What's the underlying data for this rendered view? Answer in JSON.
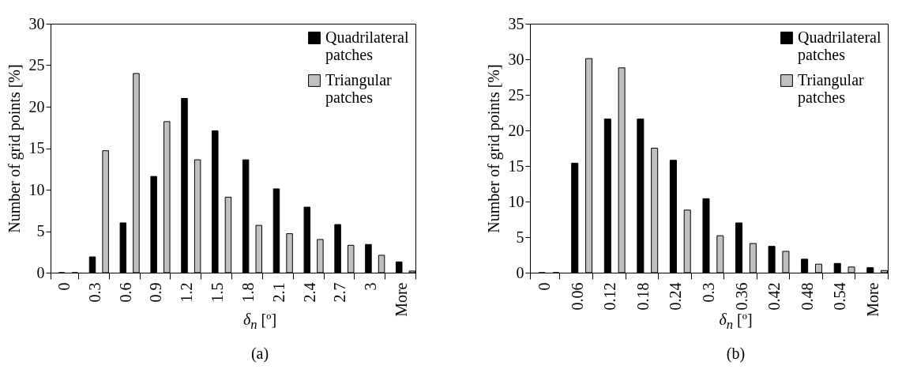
{
  "chart_data": [
    {
      "type": "bar",
      "xlabel": "δ$_{n}$ [º]",
      "ylabel": "Number of grid points [%]",
      "annotations": [
        "(a)"
      ],
      "categories": [
        "0",
        "0.3",
        "0.6",
        "0.9",
        "1.2",
        "1.5",
        "1.8",
        "2.1",
        "2.4",
        "2.7",
        "3",
        "More"
      ],
      "ylim": [
        0,
        30
      ],
      "yticks": [
        0,
        5,
        10,
        15,
        20,
        25,
        30
      ],
      "legend": "top right",
      "grid": false,
      "series": [
        {
          "name": "Quadrilateral patches",
          "color": "#000000",
          "values": [
            0,
            1.9,
            6,
            11.6,
            21,
            17.1,
            13.6,
            10.1,
            7.9,
            5.8,
            3.4,
            1.3
          ]
        },
        {
          "name": "Triangular patches",
          "color": "#c0c0c0",
          "values": [
            0,
            14.7,
            24,
            18.2,
            13.6,
            9.1,
            5.7,
            4.7,
            4.0,
            3.3,
            2.1,
            0.2
          ]
        }
      ]
    },
    {
      "type": "bar",
      "xlabel": "δ$_{n}$ [º]",
      "ylabel": "Number of grid points [%]",
      "annotations": [
        "(b)"
      ],
      "categories": [
        "0",
        "0.06",
        "0.12",
        "0.18",
        "0.24",
        "0.3",
        "0.36",
        "0.42",
        "0.48",
        "0.54",
        "More"
      ],
      "ylim": [
        0,
        35
      ],
      "yticks": [
        0,
        5,
        10,
        15,
        20,
        25,
        30,
        35
      ],
      "legend": "top right",
      "grid": false,
      "series": [
        {
          "name": "Quadrilateral patches",
          "color": "#000000",
          "values": [
            0,
            15.4,
            21.6,
            21.6,
            15.8,
            10.4,
            7.0,
            3.7,
            1.9,
            1.3,
            0.7
          ]
        },
        {
          "name": "Triangular patches",
          "color": "#c0c0c0",
          "values": [
            0,
            30.1,
            28.8,
            17.5,
            8.8,
            5.2,
            4.1,
            3.0,
            1.2,
            0.8,
            0.3
          ]
        }
      ]
    }
  ]
}
